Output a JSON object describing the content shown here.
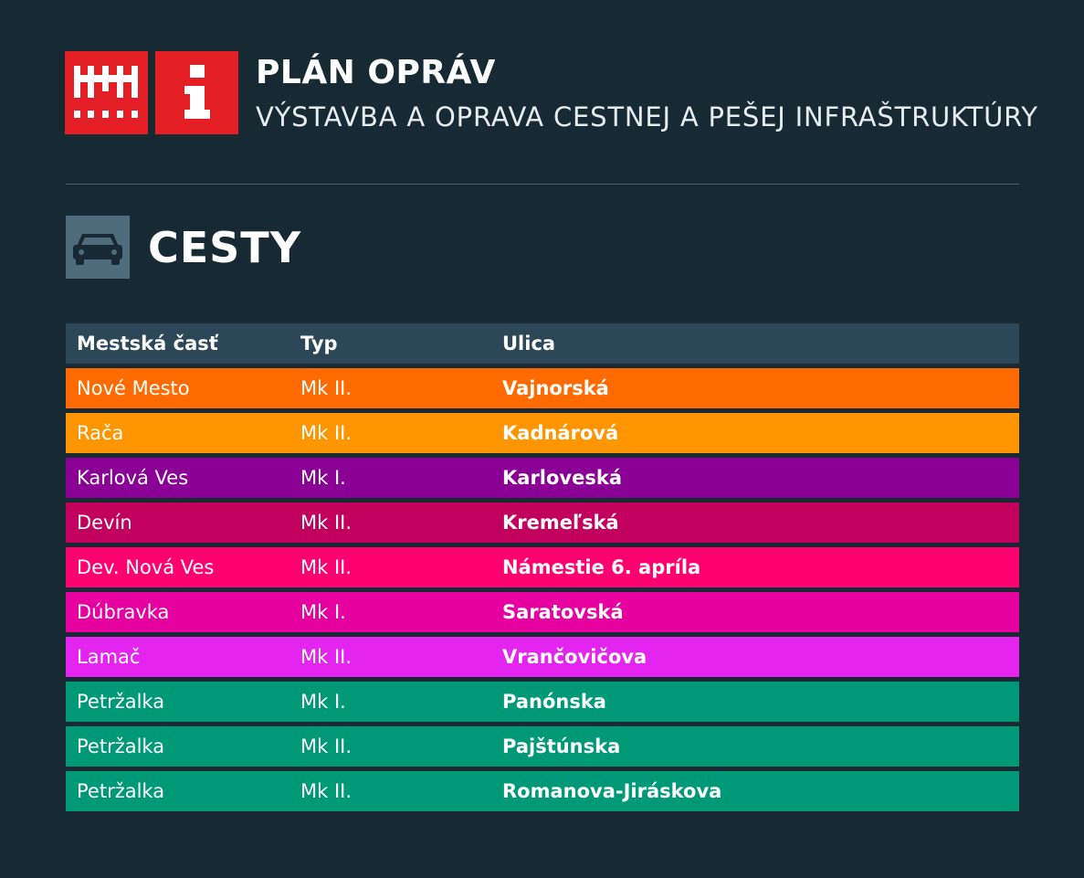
{
  "header": {
    "title": "PLÁN OPRÁV",
    "subtitle": "VÝSTAVBA A OPRAVA CESTNEJ A PEŠEJ INFRAŠTRUKTÚRY",
    "logo_color": "#e31e24",
    "logo_icons": [
      "city-wall-icon",
      "info-icon"
    ]
  },
  "section": {
    "title": "CESTY",
    "icon": "car-icon",
    "icon_bg": "#4f6c7d"
  },
  "table": {
    "columns": [
      "Mestská časť",
      "Typ",
      "Ulica"
    ],
    "rows": [
      {
        "district": "Nové Mesto",
        "type": "Mk II.",
        "street": "Vajnorská",
        "color": "#ff6b00"
      },
      {
        "district": "Rača",
        "type": "Mk II.",
        "street": "Kadnárová",
        "color": "#ff9500"
      },
      {
        "district": "Karlová Ves",
        "type": "Mk I.",
        "street": "Karloveská",
        "color": "#8b0094"
      },
      {
        "district": "Devín",
        "type": "Mk II.",
        "street": "Kremeľská",
        "color": "#c2005e"
      },
      {
        "district": "Dev. Nová Ves",
        "type": "Mk II.",
        "street": "Námestie 6. apríla",
        "color": "#ff0070"
      },
      {
        "district": "Dúbravka",
        "type": "Mk I.",
        "street": "Saratovská",
        "color": "#e600a0"
      },
      {
        "district": "Lamač",
        "type": "Mk II.",
        "street": "Vrančovičova",
        "color": "#e325ef"
      },
      {
        "district": "Petržalka",
        "type": "Mk I.",
        "street": "Panónska",
        "color": "#009977"
      },
      {
        "district": "Petržalka",
        "type": "Mk II.",
        "street": "Pajštúnska",
        "color": "#009977"
      },
      {
        "district": "Petržalka",
        "type": "Mk II.",
        "street": "Romanova-Jiráskova",
        "color": "#009977"
      }
    ]
  }
}
